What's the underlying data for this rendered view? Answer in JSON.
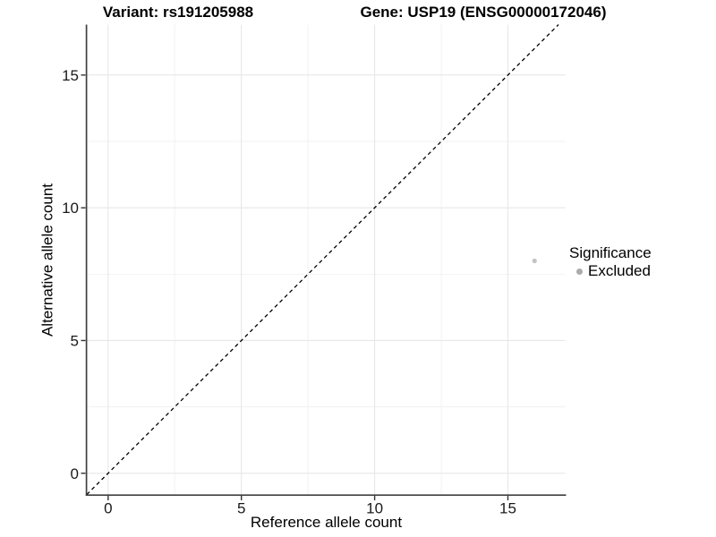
{
  "chart_data": {
    "type": "scatter",
    "title_left": "Variant: rs191205988",
    "title_right": "Gene: USP19 (ENSG00000172046)",
    "xlabel": "Reference allele count",
    "ylabel": "Alternative allele count",
    "xlim": [
      -0.8,
      17.15
    ],
    "ylim": [
      -0.8,
      16.9
    ],
    "x_major_ticks": [
      0,
      5,
      10,
      15
    ],
    "y_major_ticks": [
      0,
      5,
      10,
      15
    ],
    "x_minor_ticks": [
      2.5,
      7.5,
      12.5
    ],
    "y_minor_ticks": [
      2.5,
      7.5,
      12.5
    ],
    "grid": true,
    "legend_position": "right",
    "identity_line": {
      "style": "dashed",
      "color": "#000000",
      "equation": "y = x"
    },
    "series": [
      {
        "name": "Excluded",
        "color": "#c3c3c3",
        "points": [
          {
            "x": 16,
            "y": 8
          }
        ],
        "point_radius": 2.6
      }
    ],
    "legend": {
      "title": "Significance",
      "entries": [
        {
          "label": "Excluded",
          "color": "#ababab"
        }
      ]
    },
    "colors": {
      "background": "#ffffff",
      "grid_major": "#e7e7e7",
      "grid_minor": "#f1f1f1",
      "axis_line": "#404040",
      "tick_mark": "#333333",
      "tick_label": "#1a1a1a"
    }
  }
}
